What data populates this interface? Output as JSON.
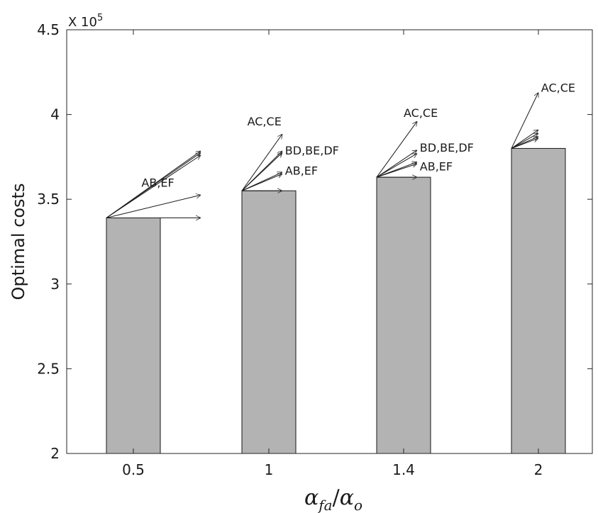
{
  "chart_data": {
    "type": "bar",
    "categories": [
      "0.5",
      "1",
      "1.4",
      "2"
    ],
    "values": [
      3.39,
      3.55,
      3.63,
      3.8
    ],
    "ylabel": "Optimal costs",
    "xlabel": {
      "base1": "α",
      "sub1": "fa",
      "sep": "/",
      "base2": "α",
      "sub2": "o"
    },
    "y_exponent": {
      "prefix": "X 10",
      "power": "5"
    },
    "ylim": [
      2,
      4.5
    ],
    "yticks": [
      "2",
      "2.5",
      "3",
      "3.5",
      "4",
      "4.5"
    ],
    "grid": false,
    "bar_color": "#b3b3b3",
    "annotations": [
      {
        "category": "0.5",
        "arrows": [
          {
            "dx": 0.35,
            "y": 3.785
          },
          {
            "dx": 0.35,
            "y": 3.775
          },
          {
            "dx": 0.35,
            "y": 3.76
          },
          {
            "dx": 0.35,
            "y": 3.525
          },
          {
            "dx": 0.35,
            "y": 3.39
          }
        ],
        "labels": [
          {
            "text": "AB,EF",
            "dx": 0.13,
            "y": 3.575
          }
        ]
      },
      {
        "category": "1",
        "arrows": [
          {
            "dx": 0.15,
            "y": 3.885
          },
          {
            "dx": 0.15,
            "y": 3.785
          },
          {
            "dx": 0.15,
            "y": 3.775
          },
          {
            "dx": 0.15,
            "y": 3.66
          },
          {
            "dx": 0.15,
            "y": 3.65
          },
          {
            "dx": 0.15,
            "y": 3.55
          }
        ],
        "labels": [
          {
            "text": "AC,CE",
            "dx": 0.02,
            "y": 3.935
          },
          {
            "text": "BD,BE,DF",
            "dx": 0.16,
            "y": 3.765
          },
          {
            "text": "AB,EF",
            "dx": 0.16,
            "y": 3.645
          }
        ]
      },
      {
        "category": "1.4",
        "arrows": [
          {
            "dx": 0.15,
            "y": 3.96
          },
          {
            "dx": 0.15,
            "y": 3.79
          },
          {
            "dx": 0.15,
            "y": 3.77
          },
          {
            "dx": 0.15,
            "y": 3.72
          },
          {
            "dx": 0.15,
            "y": 3.71
          },
          {
            "dx": 0.15,
            "y": 3.63
          }
        ],
        "labels": [
          {
            "text": "AC,CE",
            "dx": 0.1,
            "y": 3.985
          },
          {
            "text": "BD,BE,DF",
            "dx": 0.16,
            "y": 3.78
          },
          {
            "text": "AB,EF",
            "dx": 0.16,
            "y": 3.67
          }
        ]
      },
      {
        "category": "2",
        "arrows": [
          {
            "dx": 0.1,
            "y": 4.13
          },
          {
            "dx": 0.1,
            "y": 3.91
          },
          {
            "dx": 0.1,
            "y": 3.89
          },
          {
            "dx": 0.1,
            "y": 3.87
          },
          {
            "dx": 0.1,
            "y": 3.86
          }
        ],
        "labels": [
          {
            "text": "AC,CE",
            "dx": 0.11,
            "y": 4.135
          }
        ]
      }
    ]
  }
}
